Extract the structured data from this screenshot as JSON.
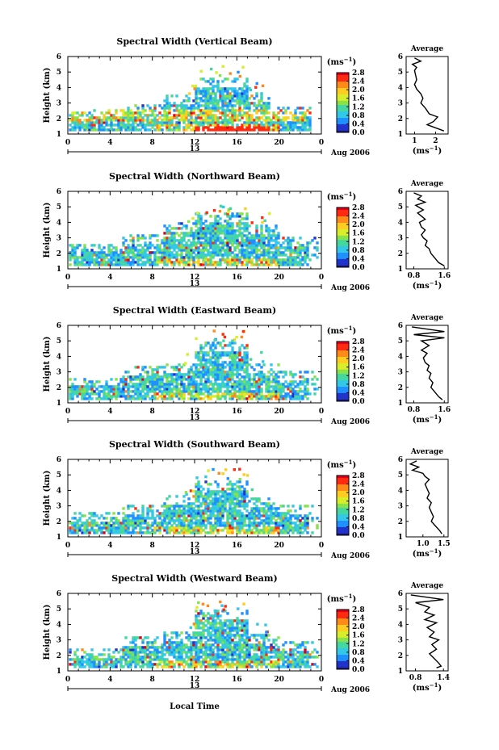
{
  "xlabel": "Local Time",
  "date_label": "Aug 2006",
  "avg_title": "Average",
  "colorbar_unit": "(ms-1)",
  "colorbar_ticks": [
    "0.0",
    "0.4",
    "0.8",
    "1.2",
    "1.6",
    "2.0",
    "2.4",
    "2.8"
  ],
  "colorscale": [
    "#1a1a6e",
    "#2233cc",
    "#1e90ff",
    "#33c8e8",
    "#44d7a0",
    "#88e24a",
    "#d9ee2a",
    "#ffcc22",
    "#ff8a1a",
    "#ff2a10",
    "#e0001a"
  ],
  "chart_data": [
    {
      "type": "heatmap",
      "title": "Spectral Width (Vertical Beam)",
      "ylabel": "Height (km)",
      "xticks": [
        "0",
        "4",
        "8",
        "12",
        "16",
        "20",
        "0"
      ],
      "mid_tick": "13",
      "ylim": [
        1,
        6
      ],
      "profile": {
        "x_ticks": [
          "1",
          "2"
        ],
        "xlim": [
          0.6,
          2.6
        ],
        "xlabel": "(ms-1)",
        "points": [
          [
            1.0,
            5.9
          ],
          [
            1.3,
            5.7
          ],
          [
            0.9,
            5.5
          ],
          [
            1.1,
            5.3
          ],
          [
            1.0,
            5.1
          ],
          [
            1.05,
            4.8
          ],
          [
            1.1,
            4.5
          ],
          [
            1.0,
            4.2
          ],
          [
            1.1,
            3.9
          ],
          [
            1.3,
            3.6
          ],
          [
            1.4,
            3.3
          ],
          [
            1.3,
            3.0
          ],
          [
            1.5,
            2.7
          ],
          [
            1.6,
            2.5
          ],
          [
            1.7,
            2.3
          ],
          [
            2.1,
            2.1
          ],
          [
            1.9,
            1.8
          ],
          [
            1.6,
            1.6
          ],
          [
            2.0,
            1.4
          ],
          [
            2.4,
            1.2
          ]
        ]
      }
    },
    {
      "type": "heatmap",
      "title": "Spectral Width (Northward Beam)",
      "ylabel": "Height (km)",
      "xticks": [
        "0",
        "4",
        "8",
        "12",
        "16",
        "20",
        "0"
      ],
      "mid_tick": "13",
      "ylim": [
        1,
        6
      ],
      "profile": {
        "x_ticks": [
          "0.8",
          "1.6"
        ],
        "xlim": [
          0.6,
          1.7
        ],
        "xlabel": "(ms-1)",
        "points": [
          [
            0.8,
            5.9
          ],
          [
            1.0,
            5.7
          ],
          [
            0.9,
            5.5
          ],
          [
            1.1,
            5.3
          ],
          [
            0.85,
            5.1
          ],
          [
            1.05,
            4.8
          ],
          [
            0.9,
            4.6
          ],
          [
            1.0,
            4.4
          ],
          [
            1.1,
            4.2
          ],
          [
            0.95,
            4.0
          ],
          [
            1.0,
            3.7
          ],
          [
            1.1,
            3.5
          ],
          [
            1.0,
            3.2
          ],
          [
            1.05,
            3.0
          ],
          [
            1.15,
            2.8
          ],
          [
            1.1,
            2.5
          ],
          [
            1.2,
            2.3
          ],
          [
            1.25,
            2.0
          ],
          [
            1.35,
            1.7
          ],
          [
            1.45,
            1.4
          ],
          [
            1.6,
            1.2
          ]
        ]
      }
    },
    {
      "type": "heatmap",
      "title": "Spectral Width (Eastward Beam)",
      "ylabel": "Height (km)",
      "xticks": [
        "0",
        "4",
        "8",
        "12",
        "16",
        "20",
        "0"
      ],
      "mid_tick": "13",
      "ylim": [
        1,
        6
      ],
      "profile": {
        "x_ticks": [
          "0.8",
          "1.6"
        ],
        "xlim": [
          0.6,
          1.7
        ],
        "xlabel": "(ms-1)",
        "points": [
          [
            0.75,
            5.9
          ],
          [
            1.6,
            5.6
          ],
          [
            0.8,
            5.4
          ],
          [
            1.6,
            5.2
          ],
          [
            1.0,
            5.0
          ],
          [
            1.2,
            4.7
          ],
          [
            1.0,
            4.4
          ],
          [
            1.15,
            4.2
          ],
          [
            1.05,
            3.9
          ],
          [
            1.1,
            3.6
          ],
          [
            1.2,
            3.4
          ],
          [
            1.15,
            3.1
          ],
          [
            1.25,
            2.9
          ],
          [
            1.2,
            2.6
          ],
          [
            1.3,
            2.3
          ],
          [
            1.25,
            2.0
          ],
          [
            1.35,
            1.7
          ],
          [
            1.45,
            1.4
          ],
          [
            1.55,
            1.2
          ]
        ]
      }
    },
    {
      "type": "heatmap",
      "title": "Spectral Width (Southward Beam)",
      "ylabel": "Height (km)",
      "xticks": [
        "0",
        "4",
        "8",
        "12",
        "16",
        "20",
        "0"
      ],
      "mid_tick": "13",
      "ylim": [
        1,
        6
      ],
      "profile": {
        "x_ticks": [
          "1.0",
          "1.5"
        ],
        "xlim": [
          0.6,
          1.6
        ],
        "xlabel": "(ms-1)",
        "points": [
          [
            0.85,
            5.9
          ],
          [
            0.7,
            5.7
          ],
          [
            0.9,
            5.5
          ],
          [
            0.75,
            5.3
          ],
          [
            1.0,
            5.1
          ],
          [
            1.05,
            4.9
          ],
          [
            1.15,
            4.7
          ],
          [
            1.05,
            4.4
          ],
          [
            1.1,
            4.1
          ],
          [
            1.15,
            3.8
          ],
          [
            1.1,
            3.5
          ],
          [
            1.2,
            3.2
          ],
          [
            1.15,
            2.9
          ],
          [
            1.2,
            2.6
          ],
          [
            1.25,
            2.3
          ],
          [
            1.2,
            2.0
          ],
          [
            1.3,
            1.7
          ],
          [
            1.4,
            1.4
          ],
          [
            1.45,
            1.2
          ]
        ]
      }
    },
    {
      "type": "heatmap",
      "title": "Spectral Width (Westward Beam)",
      "ylabel": "Height (km)",
      "xticks": [
        "0",
        "4",
        "8",
        "12",
        "16",
        "20",
        "0"
      ],
      "mid_tick": "13",
      "ylim": [
        1,
        6
      ],
      "profile": {
        "x_ticks": [
          "0.8",
          "1.4"
        ],
        "xlim": [
          0.6,
          1.5
        ],
        "xlabel": "(ms-1)",
        "points": [
          [
            0.7,
            5.9
          ],
          [
            1.4,
            5.6
          ],
          [
            0.8,
            5.4
          ],
          [
            1.1,
            5.1
          ],
          [
            1.0,
            4.8
          ],
          [
            1.2,
            4.6
          ],
          [
            1.0,
            4.3
          ],
          [
            1.25,
            4.1
          ],
          [
            1.05,
            3.8
          ],
          [
            1.2,
            3.5
          ],
          [
            1.1,
            3.2
          ],
          [
            1.3,
            3.0
          ],
          [
            1.15,
            2.7
          ],
          [
            1.25,
            2.4
          ],
          [
            1.1,
            2.1
          ],
          [
            1.2,
            1.8
          ],
          [
            1.3,
            1.5
          ],
          [
            1.35,
            1.3
          ],
          [
            1.25,
            1.2
          ]
        ]
      }
    }
  ]
}
